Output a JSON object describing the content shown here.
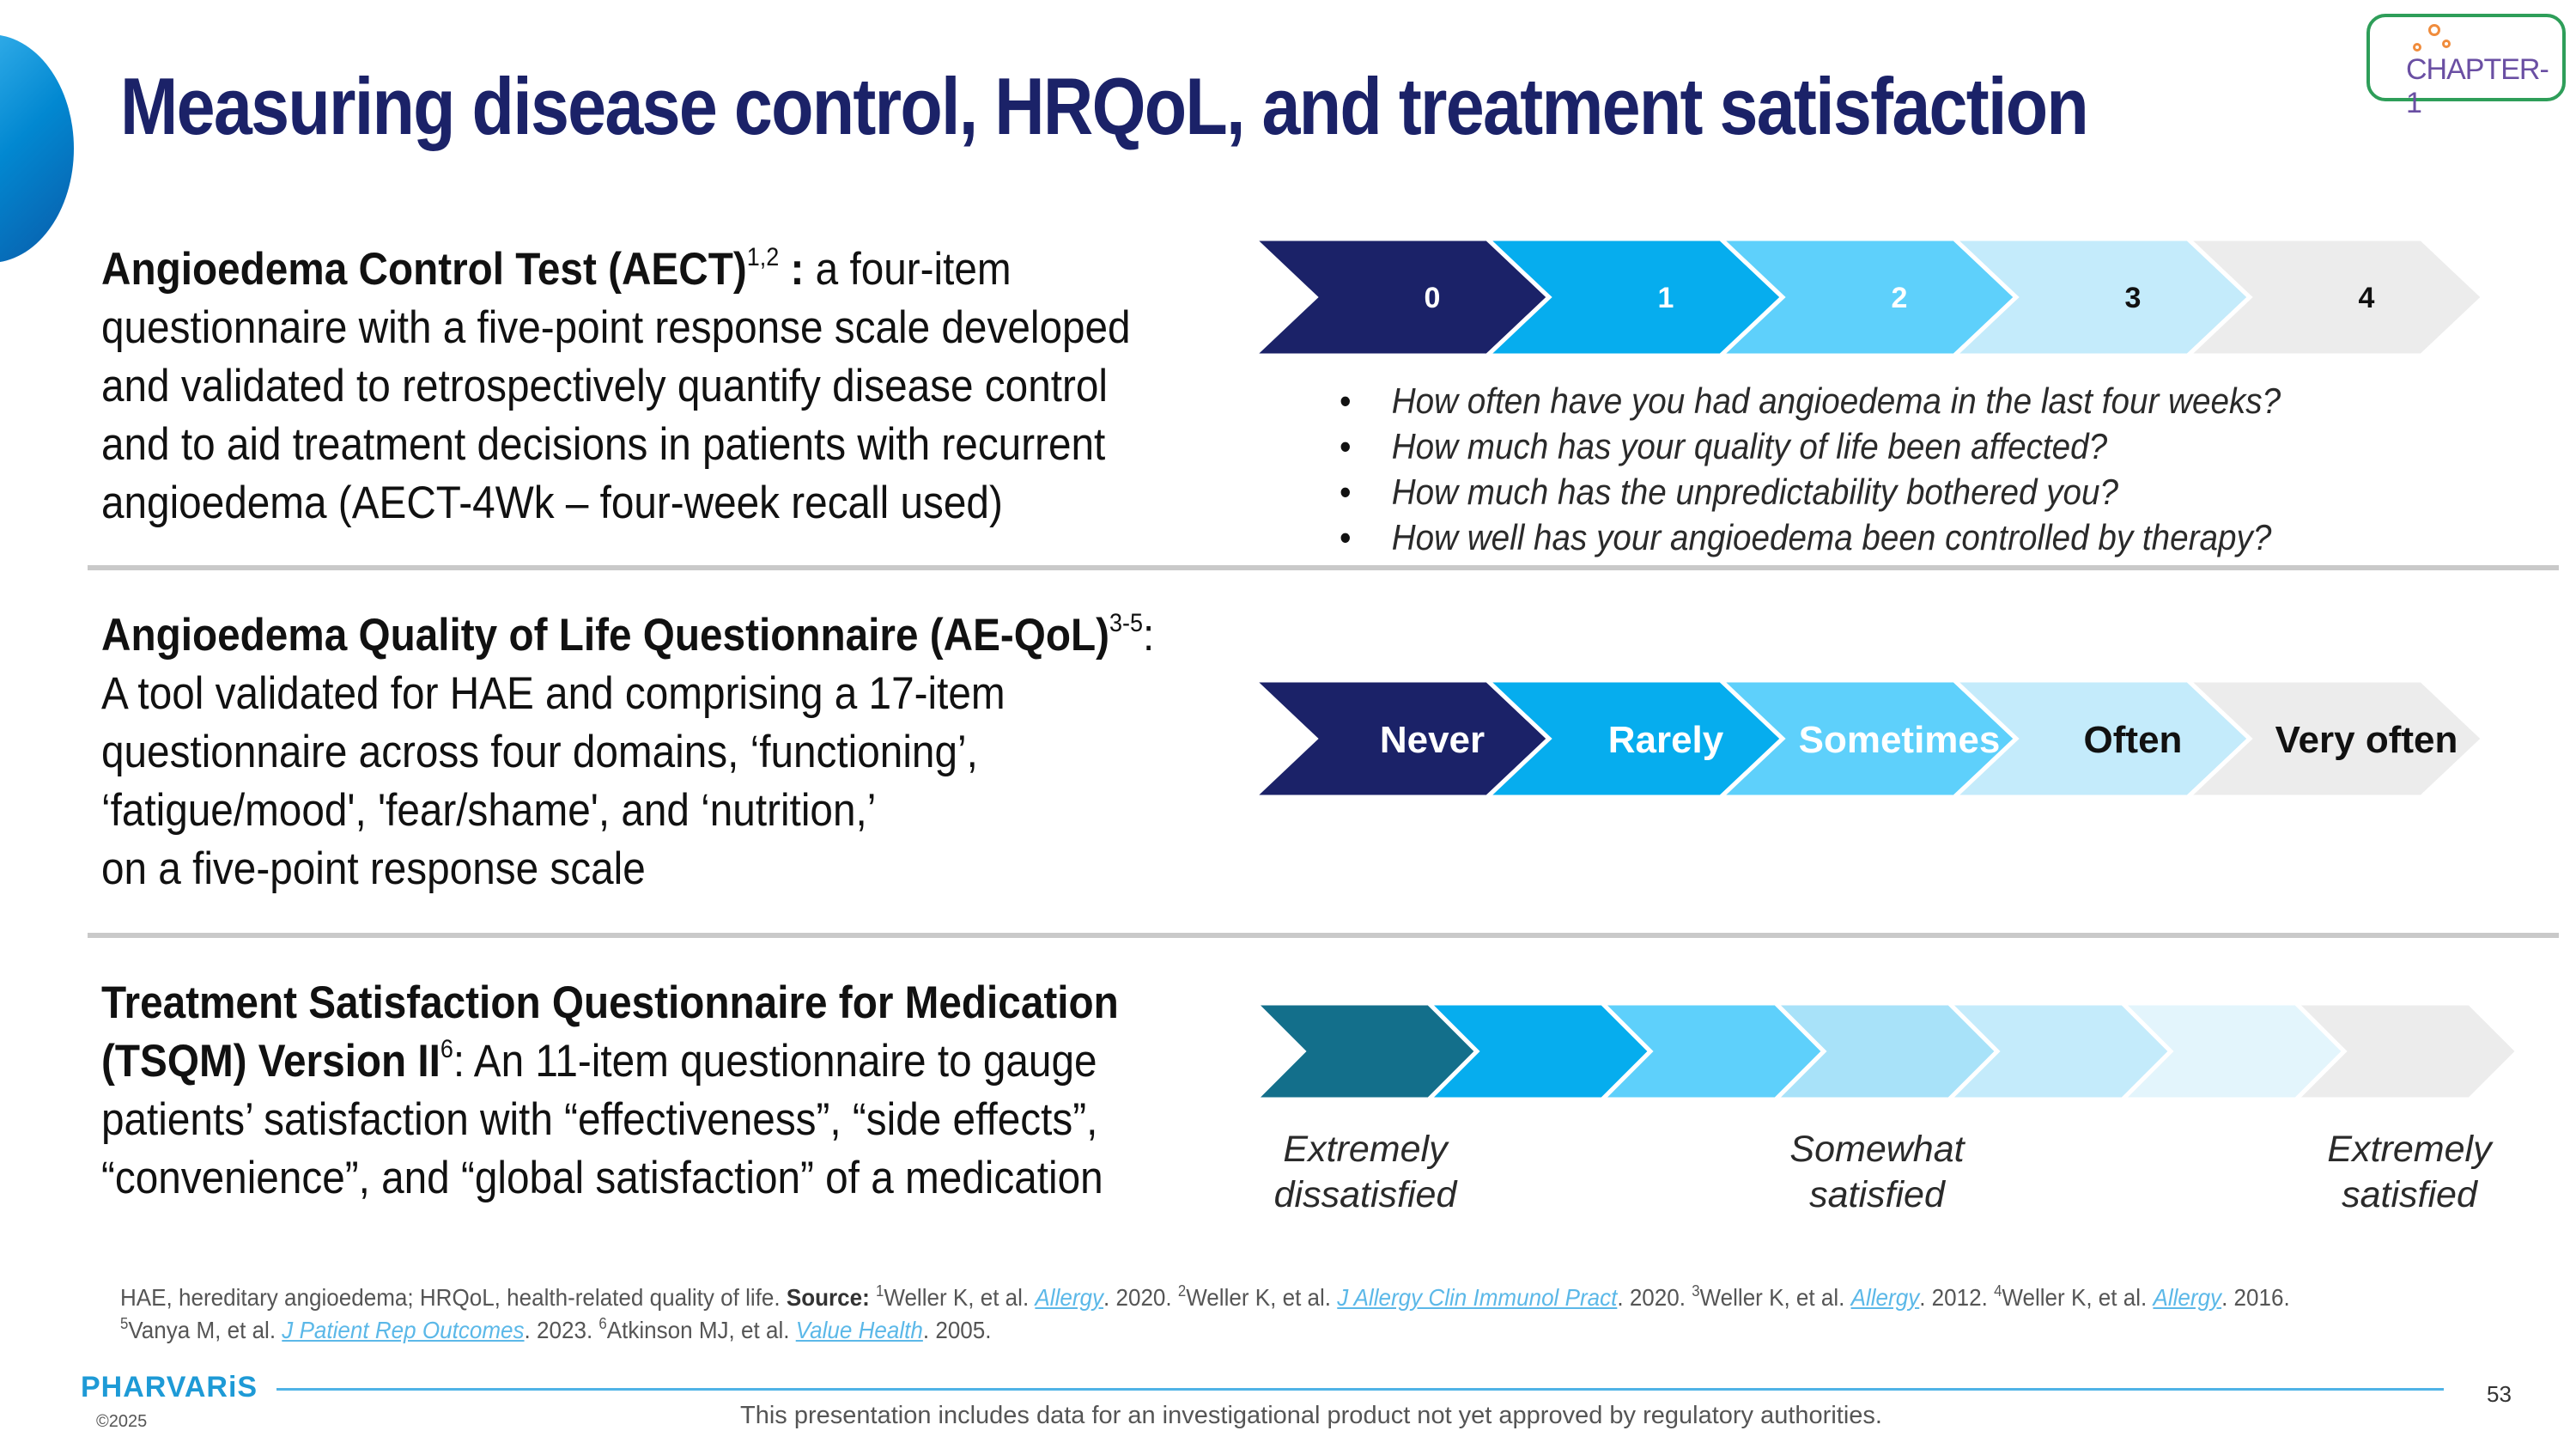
{
  "title": "Measuring disease control, HRQoL, and treatment satisfaction",
  "logo": {
    "text": "CHAPTER-1"
  },
  "sections": {
    "aect": {
      "heading": "Angioedema Control Test (AECT)",
      "sup": "1,2",
      "colon": " :",
      "line1": " a four-item",
      "lines": [
        "questionnaire with a five-point response scale developed",
        "and validated to retrospectively quantify disease control",
        "and to aid treatment decisions in patients with recurrent",
        "angioedema (AECT-4Wk – four-week recall used)"
      ],
      "scale": [
        "0",
        "1",
        "2",
        "3",
        "4"
      ],
      "questions": [
        "How often have you had angioedema in the last four weeks?",
        "How much has your quality of life been affected?",
        "How much has the unpredictability bothered you?",
        "How well has your angioedema been controlled by therapy?"
      ]
    },
    "aeqol": {
      "heading": "Angioedema Quality of Life Questionnaire (AE-QoL)",
      "sup": "3-5",
      "colon": ":",
      "lines": [
        "A tool validated for HAE and comprising a 17-item",
        "questionnaire across four domains, ‘functioning’,",
        "‘fatigue/mood', 'fear/shame', and ‘nutrition,’",
        "on a five-point response scale"
      ],
      "scale": [
        "Never",
        "Rarely",
        "Sometimes",
        "Often",
        "Very often"
      ]
    },
    "tsqm": {
      "heading1": "Treatment Satisfaction Questionnaire for Medication",
      "heading2": "(TSQM) Version II",
      "sup": "6",
      "rest2": ": An 11-item questionnaire to gauge",
      "lines": [
        "patients’ satisfaction with “effectiveness”, “side effects”,",
        "“convenience”, and “global satisfaction” of a medication"
      ],
      "scale_count": 7,
      "labels": {
        "left": [
          "Extremely",
          "dissatisfied"
        ],
        "mid": [
          "Somewhat",
          "satisfied"
        ],
        "right": [
          "Extremely",
          "satisfied"
        ]
      }
    }
  },
  "colors": {
    "navy": "#1b2268",
    "blue": "#06adee",
    "sky": "#5ed0fb",
    "pale": "#c4ebfb",
    "grey": "#ececec",
    "teal": "#136f8b"
  },
  "footnote": {
    "abbrev": "HAE, hereditary angioedema; HRQoL, health-related quality of life. ",
    "source_label": "Source:",
    "refs": [
      {
        "num": "1",
        "author": "Weller K, et al. ",
        "journal": "Allergy",
        "year": ". 2020. "
      },
      {
        "num": "2",
        "author": "Weller K, et al. ",
        "journal": "J Allergy Clin Immunol Pract",
        "year": ". 2020. "
      },
      {
        "num": "3",
        "author": "Weller K, et al. ",
        "journal": "Allergy",
        "year": ". 2012. "
      },
      {
        "num": "4",
        "author": "Weller K, et al. ",
        "journal": "Allergy",
        "year": ". 2016. "
      },
      {
        "num": "5",
        "author": "Vanya M, et al. ",
        "journal": "J Patient Rep Outcomes",
        "year": ". 2023. "
      },
      {
        "num": "6",
        "author": "Atkinson MJ, et al. ",
        "journal": "Value Health",
        "year": ". 2005."
      }
    ]
  },
  "footer": {
    "brand": "PHARVARiS",
    "copyright": "©2025",
    "disclaimer": "This presentation includes data for an investigational product not yet approved by regulatory authorities.",
    "page": "53"
  }
}
